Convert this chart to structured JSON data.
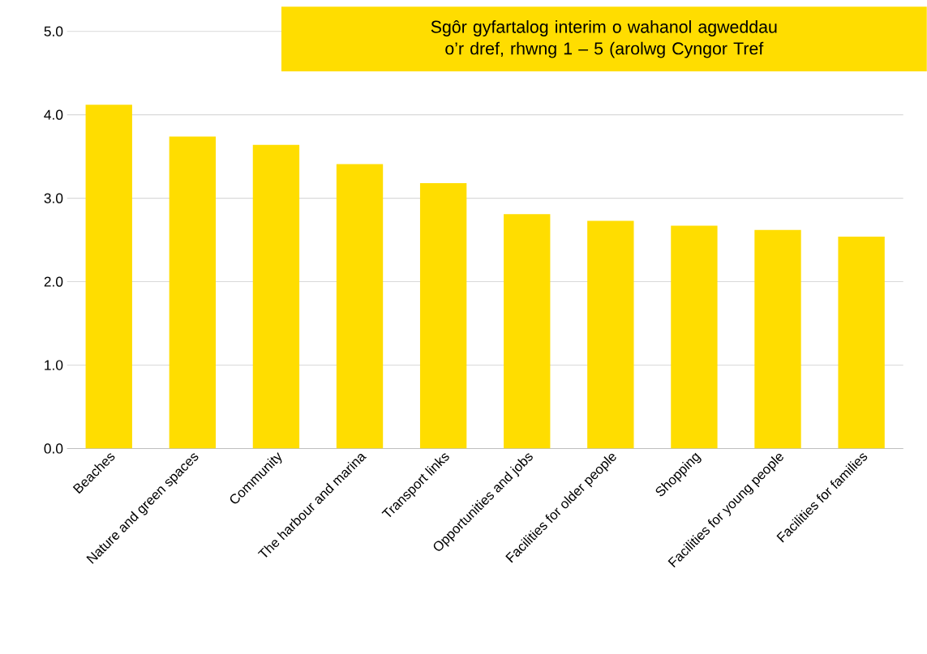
{
  "chart_data": {
    "type": "bar",
    "title": "Sgôr gyfartalog interim o wahanol agweddau o’r dref, rhwng 1 – 5 (arolwg Cyngor Tref",
    "categories": [
      "Beaches",
      "Nature and green spaces",
      "Community",
      "The harbour and marina",
      "Transport links",
      "Opportunities and jobs",
      "Facilities for older people",
      "Shopping",
      "Facilities for young people",
      "Facilities for families"
    ],
    "values": [
      4.12,
      3.74,
      3.64,
      3.41,
      3.18,
      2.81,
      2.73,
      2.67,
      2.62,
      2.54
    ],
    "color": "#ffdd00",
    "ylim": [
      0,
      5
    ],
    "yticks": [
      {
        "value": 0,
        "label": "0.0"
      },
      {
        "value": 1,
        "label": "1.0"
      },
      {
        "value": 2,
        "label": "2.0"
      },
      {
        "value": 3,
        "label": "3.0"
      },
      {
        "value": 4,
        "label": "4.0"
      },
      {
        "value": 5,
        "label": "5.0"
      }
    ],
    "grid": "y"
  }
}
